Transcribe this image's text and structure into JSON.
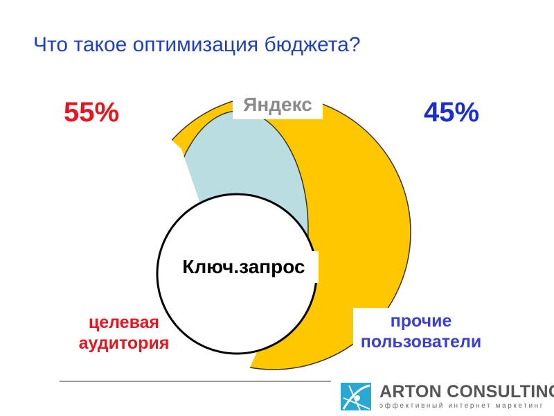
{
  "title": "Что такое оптимизация бюджета?",
  "diagram": {
    "yandex_label": "Яндекс",
    "keyword_label": "Ключ.запрос",
    "left_percent": "55%",
    "right_percent": "45%",
    "target_audience_line1": "целевая",
    "target_audience_line2": "аудитория",
    "other_users_line1": "прочие",
    "other_users_line2": "пользователи"
  },
  "colors": {
    "title": "#1f3fbf",
    "left_percent": "#e8141e",
    "right_percent": "#1a2fd0",
    "yandex_fill": "#ffc700",
    "target_fill": "#b9dde1",
    "target_label": "#e8141e",
    "other_label": "#3a3fd0"
  },
  "logo": {
    "name": "ARTON CONSULTING",
    "tagline": "эффективный интернет маркетинг"
  }
}
